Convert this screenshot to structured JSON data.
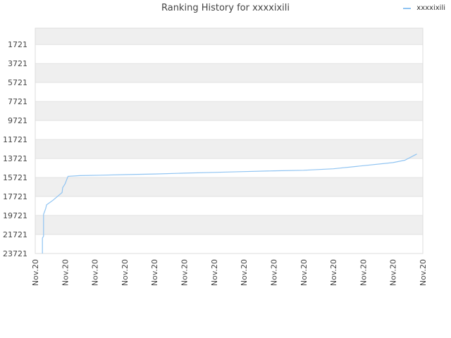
{
  "chart_data": {
    "type": "line",
    "title": "Ranking History for xxxxixili",
    "xlabel": "",
    "ylabel": "",
    "y_reversed": true,
    "ylim": [
      0,
      23721
    ],
    "y_ticks": [
      1721,
      3721,
      5721,
      7721,
      9721,
      11721,
      13721,
      15721,
      17721,
      19721,
      21721,
      23721
    ],
    "x_tick_labels": [
      "Nov.20",
      "Nov.20",
      "Nov.20",
      "Nov.20",
      "Nov.20",
      "Nov.20",
      "Nov.20",
      "Nov.20",
      "Nov.20",
      "Nov.20",
      "Nov.20",
      "Nov.20",
      "Nov.20",
      "Nov.20"
    ],
    "x_range": [
      0,
      13
    ],
    "grid": "horizontal-bands",
    "legend_position": "top-right",
    "series": [
      {
        "name": "xxxxixili",
        "color": "#90c4f2",
        "points": [
          [
            0.24,
            23721
          ],
          [
            0.24,
            22100
          ],
          [
            0.28,
            21900
          ],
          [
            0.28,
            19600
          ],
          [
            0.35,
            19000
          ],
          [
            0.38,
            18600
          ],
          [
            0.6,
            18100
          ],
          [
            0.9,
            17300
          ],
          [
            0.92,
            16800
          ],
          [
            1.0,
            16400
          ],
          [
            1.1,
            15600
          ],
          [
            1.5,
            15520
          ],
          [
            2.2,
            15480
          ],
          [
            3.0,
            15420
          ],
          [
            4.0,
            15350
          ],
          [
            5.0,
            15260
          ],
          [
            6.0,
            15180
          ],
          [
            7.0,
            15100
          ],
          [
            8.0,
            15020
          ],
          [
            9.0,
            14960
          ],
          [
            10.0,
            14800
          ],
          [
            11.0,
            14480
          ],
          [
            12.0,
            14150
          ],
          [
            12.4,
            13900
          ],
          [
            12.8,
            13250
          ]
        ]
      }
    ]
  }
}
